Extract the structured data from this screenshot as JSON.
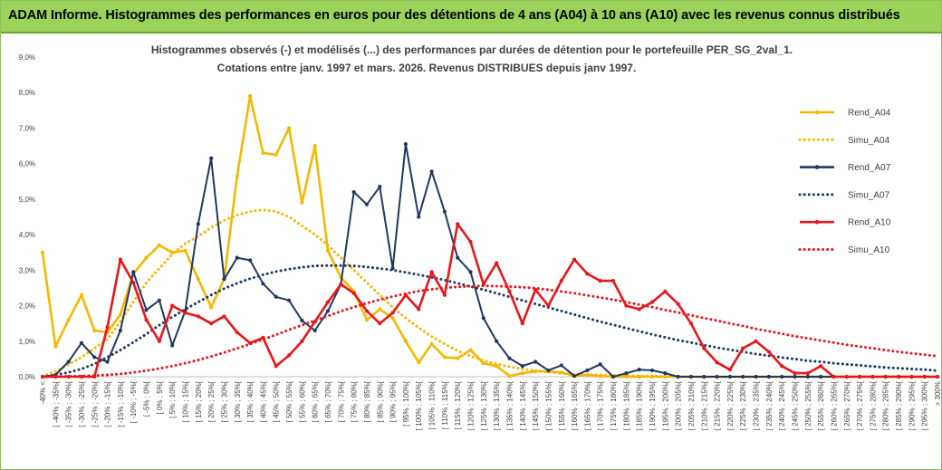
{
  "banner": {
    "title": "ADAM Informe. Histogrammes des performances en euros pour des détentions de 4 ans (A04) à 10 ans (A10) avec les revenus connus distribués"
  },
  "chart_data": {
    "type": "line",
    "title_line1": "Histogrammes observés (-) et modélisés (...) des performances par durées de détention pour le portefeuille PER_SG_2val_1.",
    "title_line2": "Cotations entre janv. 1997 et mars. 2026. Revenus DISTRIBUES depuis janv 1997.",
    "ylim": [
      0,
      9
    ],
    "y_ticks": [
      "0,0%",
      "1,0%",
      "2,0%",
      "3,0%",
      "4,0%",
      "5,0%",
      "6,0%",
      "7,0%",
      "8,0%",
      "9,0%"
    ],
    "categories": [
      "-40% <",
      "[ -40% ; -35%[",
      "[ -35% ; -30%[",
      "[ -30% ; -25%[",
      "[ -25% ; -20%[",
      "[ -20% ; -15%[",
      "[ -15% ; -10%[",
      "[ -10% ; -5%[",
      "[ -5% ; 0%[",
      "[ 0% ; 5%[",
      "[ 5% ; 10%[",
      "[ 10% ; 15%[",
      "[ 15% ; 20%[",
      "[ 20% ; 25%[",
      "[ 25% ; 30%[",
      "[ 30% ; 35%[",
      "[ 35% ; 40%[",
      "[ 40% ; 45%[",
      "[ 45% ; 50%[",
      "[ 50% ; 55%[",
      "[ 55% ; 60%[",
      "[ 60% ; 65%[",
      "[ 65% ; 70%[",
      "[ 70% ; 75%[",
      "[ 75% ; 80%[",
      "[ 80% ; 85%[",
      "[ 85% ; 90%[",
      "[ 90% ; 95%[",
      "[ 95% ; 100%[",
      "[ 100% ; 105%[",
      "[ 105% ; 110%[",
      "[ 110% ; 115%[",
      "[ 115% ; 120%[",
      "[ 120% ; 125%[",
      "[ 125% ; 130%[",
      "[ 130% ; 135%[",
      "[ 135% ; 140%[",
      "[ 140% ; 145%[",
      "[ 145% ; 150%[",
      "[ 150% ; 155%[",
      "[ 155% ; 160%[",
      "[ 160% ; 165%[",
      "[ 165% ; 170%[",
      "[ 170% ; 175%[",
      "[ 175% ; 180%[",
      "[ 180% ; 185%[",
      "[ 185% ; 190%[",
      "[ 190% ; 195%[",
      "[ 195% ; 200%[",
      "[ 200% ; 205%[",
      "[ 205% ; 210%[",
      "[ 210% ; 215%[",
      "[ 215% ; 220%[",
      "[ 220% ; 225%[",
      "[ 225% ; 230%[",
      "[ 230% ; 235%[",
      "[ 235% ; 240%[",
      "[ 240% ; 245%[",
      "[ 245% ; 250%[",
      "[ 250% ; 255%[",
      "[ 255% ; 260%[",
      "[ 260% ; 265%[",
      "[ 265% ; 270%[",
      "[ 270% ; 275%[",
      "[ 275% ; 280%[",
      "[ 280% ; 285%[",
      "[ 285% ; 290%[",
      "[ 290% ; 295%[",
      "[ 295% ; 300%[",
      "> 300%"
    ],
    "series": [
      {
        "name": "Rend_A04",
        "color": "#f5b800",
        "style": "solid",
        "markers": true,
        "values": [
          3.5,
          0.85,
          1.6,
          2.3,
          1.3,
          1.25,
          1.75,
          2.9,
          3.35,
          3.7,
          3.5,
          3.55,
          2.75,
          1.95,
          2.75,
          5.65,
          7.9,
          6.3,
          6.25,
          7.0,
          4.9,
          6.5,
          3.55,
          2.8,
          2.4,
          1.6,
          1.9,
          1.65,
          1.0,
          0.4,
          0.92,
          0.55,
          0.52,
          0.75,
          0.38,
          0.3,
          0.02,
          0.1,
          0.15,
          0.15,
          0.12,
          0.02,
          0.05,
          0.02,
          0.0,
          0.0,
          0.0,
          0.0,
          0.0,
          0.0,
          0.0,
          0.0,
          0.0,
          0.0,
          0.0,
          0.0,
          0.0,
          0.0,
          0.0,
          0.0,
          0.0,
          0.0,
          0.0,
          0.0,
          0.0,
          0.0,
          0.0,
          0.0,
          0.0,
          0.0
        ]
      },
      {
        "name": "Simu_A04",
        "color": "#f5b800",
        "style": "dotted",
        "markers": false,
        "values": [
          0.01,
          0.15,
          0.35,
          0.55,
          0.8,
          1.05,
          1.55,
          2.1,
          2.65,
          3.05,
          3.45,
          3.75,
          3.95,
          4.2,
          4.4,
          4.55,
          4.65,
          4.7,
          4.65,
          4.5,
          4.25,
          4.0,
          3.7,
          3.35,
          3.0,
          2.65,
          2.3,
          1.95,
          1.65,
          1.38,
          1.13,
          0.92,
          0.73,
          0.58,
          0.46,
          0.36,
          0.28,
          0.22,
          0.17,
          0.13,
          0.1,
          0.08,
          0.06,
          0.05,
          0.04,
          0.03,
          0.02,
          0.02,
          0.01,
          0.01,
          0.0,
          0.0,
          0.0,
          0.0,
          0.0,
          0.0,
          0.0,
          0.0,
          0.0,
          0.0,
          0.0,
          0.0,
          0.0,
          0.0,
          0.0,
          0.0,
          0.0,
          0.0,
          0.0,
          0.0
        ]
      },
      {
        "name": "Rend_A07",
        "color": "#1f3864",
        "style": "solid",
        "markers": true,
        "values": [
          0.0,
          0.05,
          0.42,
          0.95,
          0.55,
          0.42,
          1.3,
          2.95,
          1.88,
          2.15,
          0.88,
          1.85,
          4.3,
          6.15,
          2.75,
          3.35,
          3.28,
          2.62,
          2.25,
          2.15,
          1.58,
          1.3,
          1.85,
          2.6,
          5.2,
          4.85,
          5.35,
          3.05,
          6.55,
          4.5,
          5.78,
          4.65,
          3.35,
          2.95,
          1.65,
          1.0,
          0.52,
          0.3,
          0.42,
          0.18,
          0.32,
          0.02,
          0.18,
          0.35,
          0.0,
          0.1,
          0.2,
          0.18,
          0.1,
          0.0,
          0.0,
          0.0,
          0.0,
          0.0,
          0.0,
          0.0,
          0.0,
          0.0,
          0.0,
          0.0,
          0.0,
          0.0,
          0.0,
          0.0,
          0.0,
          0.0,
          0.0,
          0.0,
          0.0,
          0.0
        ]
      },
      {
        "name": "Simu_A07",
        "color": "#1f3864",
        "style": "dotted",
        "markers": false,
        "values": [
          0.0,
          0.05,
          0.12,
          0.22,
          0.36,
          0.55,
          0.75,
          0.97,
          1.2,
          1.45,
          1.68,
          1.9,
          2.1,
          2.3,
          2.48,
          2.63,
          2.76,
          2.87,
          2.96,
          3.03,
          3.08,
          3.12,
          3.13,
          3.13,
          3.12,
          3.09,
          3.05,
          3.0,
          2.94,
          2.87,
          2.8,
          2.72,
          2.63,
          2.54,
          2.45,
          2.35,
          2.25,
          2.15,
          2.05,
          1.95,
          1.85,
          1.75,
          1.65,
          1.55,
          1.46,
          1.37,
          1.28,
          1.19,
          1.11,
          1.03,
          0.96,
          0.89,
          0.82,
          0.76,
          0.7,
          0.64,
          0.59,
          0.54,
          0.5,
          0.45,
          0.42,
          0.38,
          0.35,
          0.32,
          0.29,
          0.26,
          0.24,
          0.22,
          0.2,
          0.17
        ]
      },
      {
        "name": "Rend_A10",
        "color": "#e8161b",
        "style": "solid",
        "markers": true,
        "values": [
          0.0,
          0.0,
          0.0,
          0.0,
          0.0,
          1.4,
          3.3,
          2.65,
          1.6,
          1.0,
          2.0,
          1.8,
          1.7,
          1.5,
          1.7,
          1.25,
          0.95,
          1.1,
          0.3,
          0.6,
          1.0,
          1.55,
          2.1,
          2.6,
          2.35,
          1.85,
          1.5,
          1.8,
          2.3,
          1.9,
          2.95,
          2.3,
          4.3,
          3.8,
          2.6,
          3.2,
          2.4,
          1.5,
          2.45,
          2.0,
          2.7,
          3.3,
          2.9,
          2.7,
          2.7,
          2.0,
          1.9,
          2.1,
          2.4,
          2.05,
          1.5,
          0.8,
          0.4,
          0.2,
          0.8,
          1.0,
          0.7,
          0.3,
          0.1,
          0.1,
          0.3,
          0.0,
          0.0,
          0.0,
          0.0,
          0.0,
          0.0,
          0.0,
          0.0,
          0.0
        ]
      },
      {
        "name": "Simu_A10",
        "color": "#e8161b",
        "style": "dotted",
        "markers": false,
        "values": [
          0.0,
          0.0,
          0.01,
          0.02,
          0.03,
          0.05,
          0.08,
          0.12,
          0.17,
          0.23,
          0.3,
          0.38,
          0.47,
          0.57,
          0.68,
          0.8,
          0.92,
          1.05,
          1.18,
          1.32,
          1.45,
          1.58,
          1.71,
          1.84,
          1.96,
          2.07,
          2.17,
          2.26,
          2.34,
          2.41,
          2.46,
          2.5,
          2.53,
          2.55,
          2.56,
          2.55,
          2.54,
          2.52,
          2.49,
          2.45,
          2.4,
          2.35,
          2.29,
          2.23,
          2.17,
          2.1,
          2.03,
          1.96,
          1.88,
          1.81,
          1.73,
          1.65,
          1.58,
          1.5,
          1.43,
          1.35,
          1.28,
          1.21,
          1.14,
          1.08,
          1.02,
          0.96,
          0.9,
          0.85,
          0.8,
          0.75,
          0.7,
          0.66,
          0.62,
          0.58
        ]
      }
    ],
    "legend_position": "right",
    "grid": false
  }
}
